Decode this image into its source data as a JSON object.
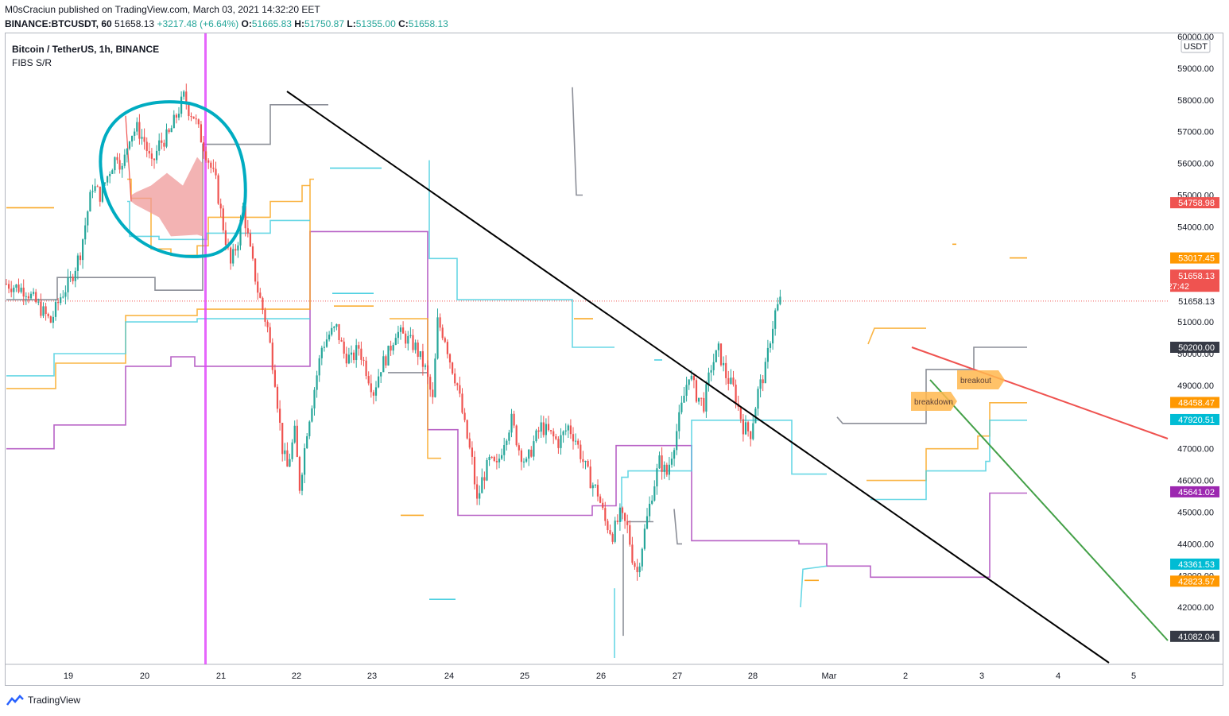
{
  "header": {
    "publisher_line": "M0sCraciun published on TradingView.com, March 03, 2021 14:32:20 EET",
    "symbol": "BINANCE:BTCUSDT, 60",
    "last": "51658.13",
    "change": "+3217.48 (+6.64%)",
    "o_label": "O:",
    "o_value": "51665.83",
    "h_label": "H:",
    "h_value": "51750.87",
    "l_label": "L:",
    "l_value": "51355.00",
    "c_label": "C:",
    "c_value": "51658.13"
  },
  "legend": {
    "title": "Bitcoin / TetherUS, 1h, BINANCE",
    "indicator": "FIBS S/R"
  },
  "footer": {
    "brand": "TradingView"
  },
  "colors": {
    "up": "#26a69a",
    "down": "#ef5350",
    "gray": "#787b86",
    "orange": "#f9a825",
    "cyan": "#4dd0e1",
    "purple": "#ab47bc",
    "red": "#ef5350",
    "green": "#43a047",
    "black": "#000000",
    "circle": "#00acc1",
    "magenta": "#e040fb"
  },
  "chart_data": {
    "type": "candlestick",
    "currency": "USDT",
    "y_range": [
      40200,
      60100
    ],
    "y_ticks": [
      "60000.00",
      "59000.00",
      "58000.00",
      "57000.00",
      "56000.00",
      "55000.00",
      "54000.00",
      "53000.00",
      "51000.00",
      "50000.00",
      "49000.00",
      "47000.00",
      "46000.00",
      "45000.00",
      "44000.00",
      "43000.00",
      "42000.00"
    ],
    "x_ticks": [
      "19",
      "20",
      "21",
      "22",
      "23",
      "24",
      "25",
      "26",
      "27",
      "28",
      "Mar",
      "2",
      "3",
      "4",
      "5"
    ],
    "last_price_label": {
      "price": "51658.13",
      "countdown": "27:42"
    },
    "price_labels": [
      {
        "value": 54758.98,
        "text": "54758.98",
        "color": "#ef5350"
      },
      {
        "value": 53017.45,
        "text": "53017.45",
        "color": "#ff9800"
      },
      {
        "value": 51658.13,
        "text": "51658.13",
        "color": "none"
      },
      {
        "value": 50200.0,
        "text": "50200.00",
        "color": "#363a45"
      },
      {
        "value": 48458.47,
        "text": "48458.47",
        "color": "#ff9800"
      },
      {
        "value": 47920.51,
        "text": "47920.51",
        "color": "#00bcd4"
      },
      {
        "value": 45641.02,
        "text": "45641.02",
        "color": "#9c27b0"
      },
      {
        "value": 43361.53,
        "text": "43361.53",
        "color": "#00bcd4"
      },
      {
        "value": 42823.57,
        "text": "42823.57",
        "color": "#ff9800"
      },
      {
        "value": 41082.04,
        "text": "41082.04",
        "color": "#363a45"
      }
    ],
    "price_path": [
      [
        0,
        52200
      ],
      [
        8,
        52000
      ],
      [
        12,
        51600
      ],
      [
        18,
        51000
      ],
      [
        22,
        51800
      ],
      [
        26,
        52300
      ],
      [
        30,
        53200
      ],
      [
        33,
        54500
      ],
      [
        35,
        55300
      ],
      [
        38,
        55000
      ],
      [
        42,
        55800
      ],
      [
        45,
        56300
      ],
      [
        47,
        55800
      ],
      [
        50,
        56900
      ],
      [
        53,
        57100
      ],
      [
        56,
        56700
      ],
      [
        59,
        55900
      ],
      [
        62,
        56600
      ],
      [
        66,
        56900
      ],
      [
        70,
        57700
      ],
      [
        72,
        58100
      ],
      [
        74,
        57700
      ],
      [
        76,
        57500
      ],
      [
        79,
        56800
      ],
      [
        82,
        56100
      ],
      [
        85,
        55400
      ],
      [
        88,
        54000
      ],
      [
        91,
        52800
      ],
      [
        94,
        53600
      ],
      [
        96,
        54600
      ],
      [
        99,
        53200
      ],
      [
        102,
        52000
      ],
      [
        106,
        50800
      ],
      [
        109,
        49200
      ],
      [
        112,
        47000
      ],
      [
        114,
        46400
      ],
      [
        117,
        47500
      ],
      [
        119,
        45800
      ],
      [
        122,
        47600
      ],
      [
        125,
        48900
      ],
      [
        128,
        50200
      ],
      [
        131,
        50600
      ],
      [
        134,
        50800
      ],
      [
        137,
        50000
      ],
      [
        140,
        49800
      ],
      [
        143,
        50200
      ],
      [
        146,
        49500
      ],
      [
        149,
        48800
      ],
      [
        152,
        49600
      ],
      [
        155,
        50000
      ],
      [
        158,
        50700
      ],
      [
        162,
        50500
      ],
      [
        166,
        50200
      ],
      [
        170,
        49500
      ],
      [
        173,
        48500
      ],
      [
        175,
        51000
      ],
      [
        178,
        50500
      ],
      [
        180,
        49800
      ],
      [
        183,
        49000
      ],
      [
        186,
        47700
      ],
      [
        189,
        46600
      ],
      [
        191,
        45300
      ],
      [
        193,
        46000
      ],
      [
        196,
        46600
      ],
      [
        199,
        46400
      ],
      [
        202,
        47300
      ],
      [
        205,
        47900
      ],
      [
        208,
        47000
      ],
      [
        211,
        46500
      ],
      [
        214,
        47200
      ],
      [
        217,
        47700
      ],
      [
        220,
        47500
      ],
      [
        224,
        47200
      ],
      [
        228,
        47700
      ],
      [
        231,
        47300
      ],
      [
        234,
        46600
      ],
      [
        237,
        46000
      ],
      [
        240,
        45600
      ],
      [
        243,
        44700
      ],
      [
        246,
        44300
      ],
      [
        249,
        44900
      ],
      [
        252,
        44500
      ],
      [
        254,
        43600
      ],
      [
        256,
        43100
      ],
      [
        259,
        44400
      ],
      [
        262,
        45600
      ],
      [
        265,
        46600
      ],
      [
        268,
        46200
      ],
      [
        271,
        47200
      ],
      [
        274,
        48300
      ],
      [
        277,
        49400
      ],
      [
        280,
        48700
      ],
      [
        283,
        48400
      ],
      [
        286,
        49600
      ],
      [
        289,
        50100
      ],
      [
        292,
        49300
      ],
      [
        295,
        48900
      ],
      [
        297,
        48300
      ],
      [
        299,
        47700
      ],
      [
        302,
        47500
      ],
      [
        305,
        48800
      ],
      [
        308,
        49500
      ],
      [
        310,
        50500
      ],
      [
        312,
        51300
      ],
      [
        314,
        51658
      ]
    ],
    "annotations": [
      "breakout",
      "breakdown"
    ]
  }
}
